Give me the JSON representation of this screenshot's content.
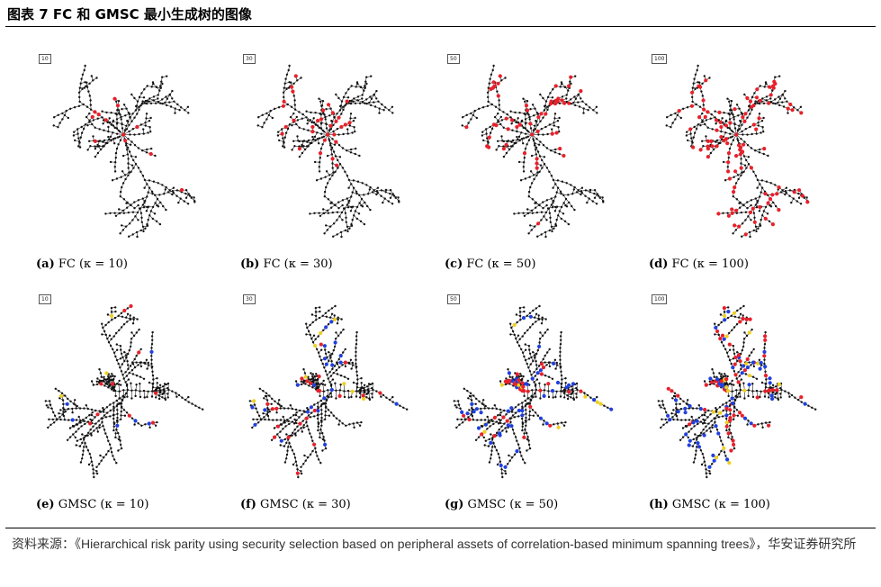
{
  "figure_title": "图表 7 FC 和 GMSC 最小生成树的图像",
  "source_label": "资料来源：",
  "source_text": "《Hierarchical risk parity using security selection based on peripheral    assets of correlation-based minimum spanning trees》，华安证券研究所",
  "panels": [
    {
      "label": "(a)",
      "method": "FC",
      "kappa": "(κ = 10)",
      "k_box": "10",
      "red": 12,
      "blue": 0,
      "yellow": 0
    },
    {
      "label": "(b)",
      "method": "FC",
      "kappa": "(κ = 30)",
      "k_box": "30",
      "red": 30,
      "blue": 0,
      "yellow": 0
    },
    {
      "label": "(c)",
      "method": "FC",
      "kappa": "(κ = 50)",
      "k_box": "50",
      "red": 50,
      "blue": 0,
      "yellow": 0
    },
    {
      "label": "(d)",
      "method": "FC",
      "kappa": "(κ = 100)",
      "k_box": "100",
      "red": 100,
      "blue": 0,
      "yellow": 0
    },
    {
      "label": "(e)",
      "method": "GMSC",
      "kappa": "(κ = 10)",
      "k_box": "10",
      "red": 10,
      "blue": 6,
      "yellow": 3
    },
    {
      "label": "(f)",
      "method": "GMSC",
      "kappa": "(κ = 30)",
      "k_box": "30",
      "red": 22,
      "blue": 22,
      "yellow": 8
    },
    {
      "label": "(g)",
      "method": "GMSC",
      "kappa": "(κ = 50)",
      "k_box": "50",
      "red": 35,
      "blue": 45,
      "yellow": 10
    },
    {
      "label": "(h)",
      "method": "GMSC",
      "kappa": "(κ = 100)",
      "k_box": "100",
      "red": 60,
      "blue": 55,
      "yellow": 18
    }
  ],
  "colors": {
    "node_default": "#111111",
    "highlight_red": "#e8202a",
    "highlight_blue": "#1f3fe0",
    "highlight_yellow": "#f0d020",
    "edge": "#222222"
  }
}
